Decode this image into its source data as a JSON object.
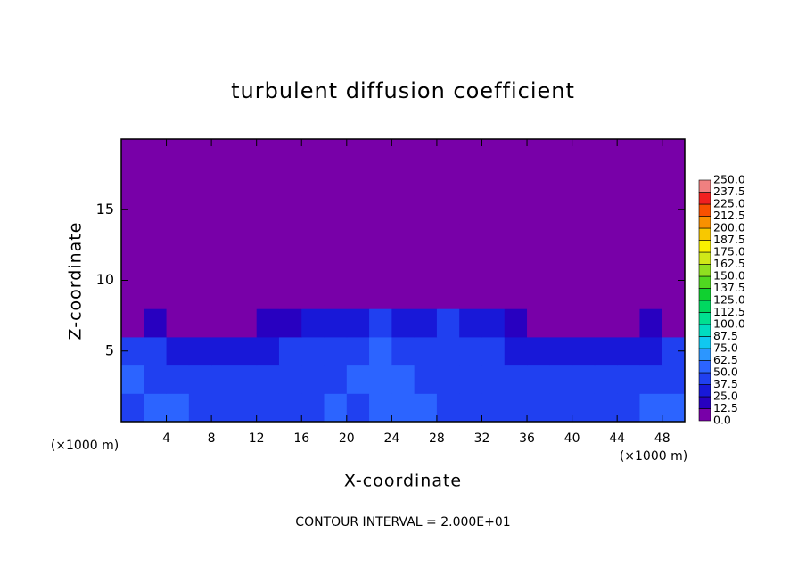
{
  "chart_data": {
    "type": "heatmap",
    "title": "turbulent diffusion coefficient",
    "x_label": "X-coordinate",
    "y_label": "Z-coordinate",
    "x_unit_label": "(×1000 m)",
    "y_unit_label": "(×1000 m)",
    "note": "CONTOUR INTERVAL = 2.000E+01",
    "xlim": [
      0,
      50
    ],
    "ylim": [
      0,
      20
    ],
    "xticks": [
      4,
      8,
      12,
      16,
      20,
      24,
      28,
      32,
      36,
      40,
      44,
      48
    ],
    "yticks": [
      5,
      10,
      15
    ],
    "x": [
      1,
      3,
      5,
      7,
      9,
      11,
      13,
      15,
      17,
      19,
      21,
      23,
      25,
      27,
      29,
      31,
      33,
      35,
      37,
      39,
      41,
      43,
      45,
      47,
      49
    ],
    "y": [
      1,
      3,
      5,
      7,
      9,
      11,
      13,
      15,
      17,
      19
    ],
    "z": [
      [
        45,
        55,
        50,
        40,
        42,
        45,
        40,
        38,
        45,
        50,
        48,
        55,
        60,
        50,
        48,
        45,
        42,
        40,
        45,
        48,
        42,
        40,
        45,
        50,
        52
      ],
      [
        50,
        45,
        40,
        38,
        42,
        40,
        38,
        42,
        45,
        48,
        50,
        55,
        50,
        45,
        48,
        42,
        40,
        45,
        42,
        40,
        38,
        40,
        42,
        45,
        48
      ],
      [
        45,
        38,
        35,
        30,
        35,
        32,
        35,
        40,
        42,
        45,
        45,
        50,
        45,
        48,
        42,
        40,
        38,
        35,
        32,
        35,
        30,
        32,
        35,
        30,
        38
      ],
      [
        12,
        15,
        12,
        10,
        12,
        10,
        14,
        18,
        28,
        30,
        35,
        38,
        35,
        35,
        38,
        30,
        25,
        15,
        12,
        10,
        12,
        10,
        12,
        14,
        12
      ],
      [
        0,
        0,
        0,
        0,
        0,
        0,
        0,
        0,
        0,
        5,
        8,
        8,
        8,
        8,
        6,
        0,
        0,
        0,
        0,
        0,
        0,
        0,
        0,
        0,
        0
      ],
      [
        0,
        0,
        0,
        0,
        0,
        0,
        0,
        0,
        0,
        0,
        0,
        0,
        0,
        0,
        0,
        0,
        0,
        0,
        0,
        0,
        0,
        0,
        0,
        0,
        0
      ],
      [
        0,
        0,
        0,
        0,
        0,
        0,
        0,
        0,
        0,
        0,
        0,
        0,
        0,
        0,
        0,
        0,
        0,
        0,
        0,
        0,
        0,
        0,
        0,
        0,
        0
      ],
      [
        0,
        0,
        0,
        0,
        0,
        0,
        0,
        0,
        0,
        0,
        0,
        0,
        0,
        0,
        0,
        0,
        0,
        0,
        0,
        0,
        0,
        0,
        0,
        0,
        0
      ],
      [
        0,
        0,
        0,
        0,
        0,
        0,
        0,
        0,
        0,
        0,
        0,
        0,
        0,
        0,
        0,
        0,
        0,
        0,
        0,
        0,
        0,
        0,
        0,
        0,
        0
      ],
      [
        0,
        0,
        0,
        0,
        0,
        0,
        0,
        0,
        0,
        0,
        0,
        0,
        0,
        0,
        0,
        0,
        0,
        0,
        0,
        0,
        0,
        0,
        0,
        0,
        0
      ]
    ],
    "levels": [
      {
        "value": 0,
        "label": "0.0"
      },
      12.5,
      {
        "value": 25,
        "label": "25.0"
      },
      37.5,
      {
        "value": 50,
        "label": "50.0"
      },
      62.5,
      {
        "value": 75,
        "label": "75.0"
      },
      87.5,
      {
        "value": 100,
        "label": "100.0"
      },
      112.5,
      {
        "value": 125,
        "label": "125.0"
      },
      137.5,
      {
        "value": 150,
        "label": "150.0"
      },
      162.5,
      {
        "value": 175,
        "label": "175.0"
      },
      187.5,
      {
        "value": 200,
        "label": "200.0"
      },
      212.5,
      {
        "value": 225,
        "label": "225.0"
      },
      237.5,
      {
        "value": 250,
        "label": "250.0"
      }
    ],
    "colors": [
      "#7800a8",
      "#2800c0",
      "#1818d8",
      "#2040f0",
      "#2c64ff",
      "#2c96ff",
      "#10c8f0",
      "#00dcc0",
      "#00e090",
      "#00d860",
      "#10d030",
      "#50d820",
      "#90e020",
      "#d0e818",
      "#f8f000",
      "#f8c800",
      "#f89000",
      "#f85000",
      "#f02020",
      "#f08080"
    ]
  }
}
